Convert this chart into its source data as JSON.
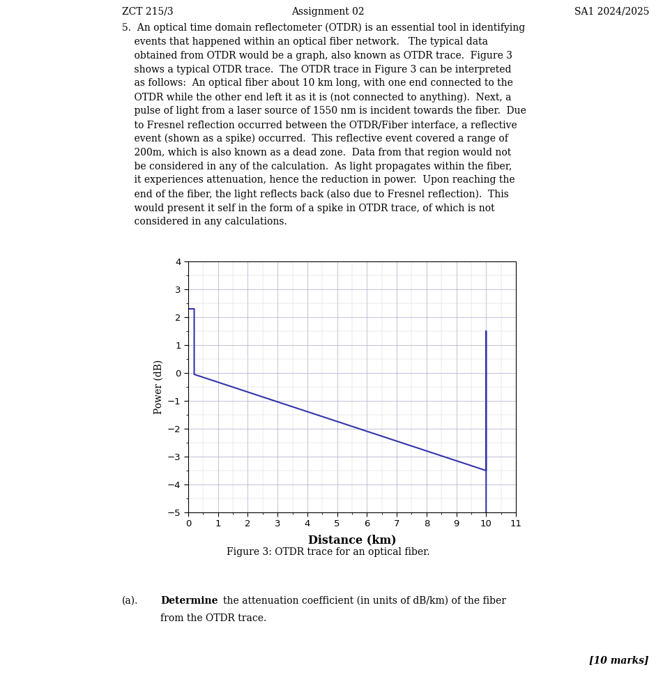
{
  "title_left": "ZCT 215/3",
  "title_center": "Assignment 02",
  "title_right": "SA1 2024/2025",
  "xlabel": "Distance (km)",
  "ylabel": "Power (dB)",
  "figure_caption": "Figure 3: OTDR trace for an optical fiber.",
  "marks": "[10 marks]",
  "xlim": [
    0,
    11
  ],
  "ylim": [
    -5,
    4
  ],
  "xticks": [
    0,
    1,
    2,
    3,
    4,
    5,
    6,
    7,
    8,
    9,
    10,
    11
  ],
  "yticks": [
    -5,
    -4,
    -3,
    -2,
    -1,
    0,
    1,
    2,
    3,
    4
  ],
  "line_color": "#3333aa",
  "line_width": 1.5,
  "grid_major_color": "#aaaacc",
  "grid_minor_color": "#ccccdd",
  "background_color": "#ffffff",
  "x_trace": [
    0.0,
    0.0,
    0.2,
    0.2,
    10.0,
    10.0,
    10.0
  ],
  "y_trace": [
    0.0,
    2.3,
    2.3,
    -0.05,
    -3.5,
    1.5,
    -5.0
  ],
  "title_fontsize": 10,
  "body_fontsize": 10,
  "caption_fontsize": 10,
  "question_fontsize": 10
}
